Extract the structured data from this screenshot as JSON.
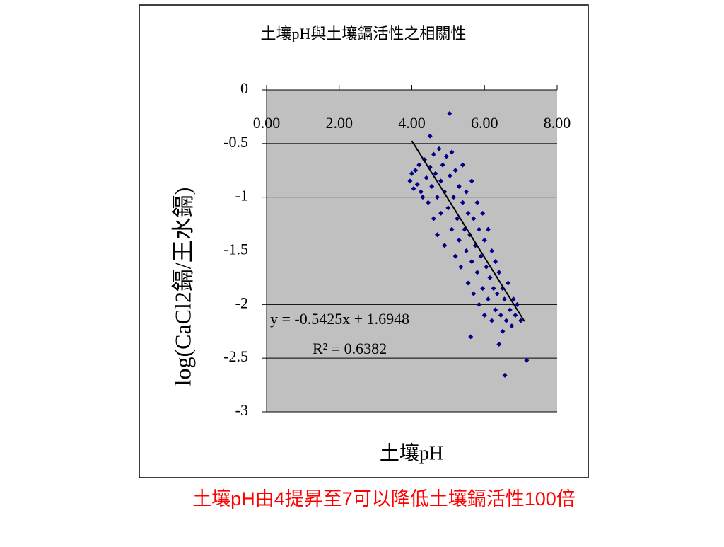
{
  "chart_data": {
    "type": "scatter",
    "title": "土壤pH與土壤鎘活性之相關性",
    "x_label": "土壤pH",
    "y_label": "log(CaCl2鎘/王水鎘)",
    "caption": "土壤pH由4提昇至7可以降低土壤鎘活性100倍",
    "xlim": [
      0,
      8
    ],
    "xticks": [
      {
        "value": 0,
        "label": "0.00"
      },
      {
        "value": 2,
        "label": "2.00"
      },
      {
        "value": 4,
        "label": "4.00"
      },
      {
        "value": 6,
        "label": "6.00"
      },
      {
        "value": 8,
        "label": "8.00"
      }
    ],
    "ylim": [
      -3,
      0
    ],
    "yticks": [
      0,
      -0.5,
      -1,
      -1.5,
      -2,
      -2.5,
      -3
    ],
    "grid": true,
    "plot_background": "#c0c0c0",
    "series": [
      {
        "name": "土壤pH",
        "color": "#00008b",
        "x": [
          3.95,
          4.0,
          4.05,
          4.1,
          4.15,
          4.2,
          4.25,
          4.3,
          4.35,
          4.4,
          4.45,
          4.5,
          4.5,
          4.55,
          4.6,
          4.6,
          4.65,
          4.7,
          4.7,
          4.75,
          4.8,
          4.8,
          4.85,
          4.9,
          4.9,
          4.95,
          5.0,
          5.04,
          5.05,
          5.1,
          5.1,
          5.15,
          5.2,
          5.2,
          5.25,
          5.3,
          5.3,
          5.35,
          5.4,
          5.4,
          5.45,
          5.5,
          5.5,
          5.55,
          5.55,
          5.6,
          5.62,
          5.65,
          5.65,
          5.7,
          5.7,
          5.75,
          5.8,
          5.8,
          5.85,
          5.85,
          5.9,
          5.95,
          5.95,
          6.0,
          6.0,
          6.05,
          6.1,
          6.1,
          6.15,
          6.2,
          6.2,
          6.25,
          6.3,
          6.3,
          6.35,
          6.4,
          6.4,
          6.45,
          6.5,
          6.5,
          6.55,
          6.56,
          6.6,
          6.65,
          6.7,
          6.75,
          6.8,
          6.85,
          6.9,
          7.0,
          7.16
        ],
        "values": [
          -0.85,
          -0.78,
          -0.92,
          -0.75,
          -0.88,
          -0.7,
          -0.95,
          -1.0,
          -0.65,
          -0.82,
          -1.05,
          -0.43,
          -0.72,
          -0.9,
          -1.2,
          -0.6,
          -0.78,
          -1.0,
          -1.35,
          -0.55,
          -0.85,
          -1.15,
          -0.7,
          -1.45,
          -0.95,
          -0.62,
          -1.1,
          -0.22,
          -0.8,
          -1.3,
          -0.58,
          -1.0,
          -1.55,
          -0.75,
          -1.2,
          -0.9,
          -1.4,
          -1.65,
          -1.05,
          -0.7,
          -1.3,
          -1.5,
          -0.95,
          -1.8,
          -1.15,
          -1.35,
          -2.3,
          -1.6,
          -0.85,
          -1.2,
          -1.9,
          -1.45,
          -1.7,
          -1.05,
          -2.0,
          -1.3,
          -1.55,
          -1.85,
          -1.15,
          -2.1,
          -1.4,
          -1.65,
          -1.95,
          -1.3,
          -1.75,
          -2.15,
          -1.5,
          -1.85,
          -2.05,
          -1.6,
          -1.9,
          -2.37,
          -1.7,
          -2.1,
          -1.85,
          -2.25,
          -1.95,
          -2.66,
          -2.15,
          -1.8,
          -2.05,
          -2.2,
          -1.95,
          -2.1,
          -2.0,
          -2.15,
          -2.52
        ]
      }
    ],
    "trendline": {
      "slope": -0.5425,
      "intercept": 1.6948,
      "x_start": 4.0,
      "x_end": 7.1,
      "equation": "y = -0.5425x + 1.6948",
      "r_squared_label": "R² = 0.6382"
    }
  }
}
